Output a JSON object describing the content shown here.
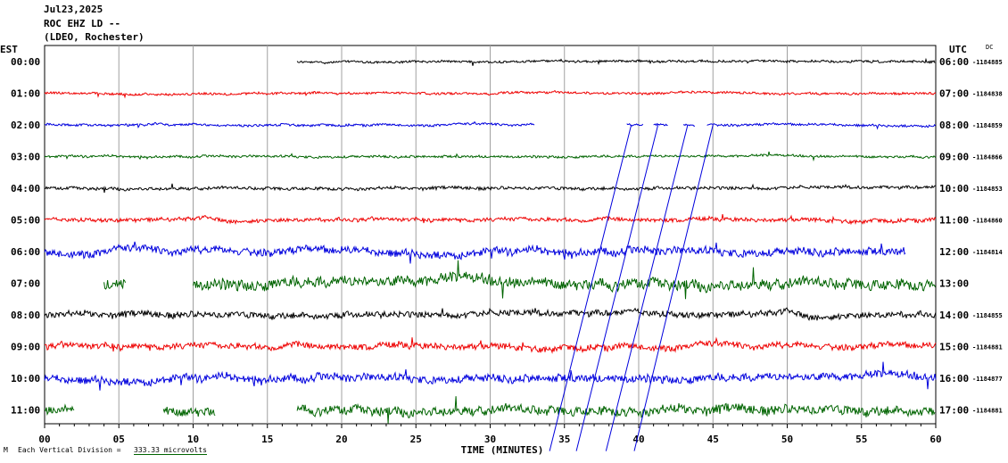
{
  "header": {
    "date": "Jul23,2025",
    "station": "ROC EHZ LD --",
    "network": "(LDEO, Rochester)"
  },
  "left_axis_label": "EST",
  "right_axis_label": "UTC",
  "dc_label": "DC",
  "footer": {
    "marker": "M",
    "scale_label": "Each Vertical Division =",
    "scale_value": "333.33 microvolts"
  },
  "colors": {
    "black": "#000000",
    "red": "#ee0000",
    "blue": "#0000dd",
    "green": "#006400",
    "grid": "#a0a0a0"
  },
  "chart_data": {
    "type": "line",
    "title": "Jul23,2025 ROC EHZ LD -- (LDEO, Rochester)",
    "xlabel": "TIME (MINUTES)",
    "ylabel_left": "EST",
    "ylabel_right": "UTC",
    "xlim": [
      0,
      60
    ],
    "x_ticks": [
      "00",
      "05",
      "10",
      "15",
      "20",
      "25",
      "30",
      "35",
      "40",
      "45",
      "50",
      "55",
      "60"
    ],
    "grid": "vertical lines every 5 minutes",
    "rows": [
      {
        "est": "00:00",
        "utc": "06:00",
        "dc": "-1184885",
        "color": "black",
        "segments": [
          [
            17,
            60
          ]
        ],
        "noise": 1.5
      },
      {
        "est": "01:00",
        "utc": "07:00",
        "dc": "-1184838",
        "color": "red",
        "segments": [
          [
            0,
            60
          ]
        ],
        "noise": 1.5
      },
      {
        "est": "02:00",
        "utc": "08:00",
        "dc": "-1184859",
        "color": "blue",
        "segments": [
          [
            0,
            33
          ],
          [
            39.2,
            40.3
          ],
          [
            41.0,
            42.0
          ],
          [
            43.0,
            43.8
          ],
          [
            44.6,
            60
          ]
        ],
        "noise": 1.5
      },
      {
        "est": "03:00",
        "utc": "09:00",
        "dc": "-1184866",
        "color": "green",
        "segments": [
          [
            0,
            60
          ]
        ],
        "noise": 1.5
      },
      {
        "est": "04:00",
        "utc": "10:00",
        "dc": "-1184853",
        "color": "black",
        "segments": [
          [
            0,
            60
          ]
        ],
        "noise": 2
      },
      {
        "est": "05:00",
        "utc": "11:00",
        "dc": "-1184860",
        "color": "red",
        "segments": [
          [
            0,
            60
          ]
        ],
        "noise": 2.5
      },
      {
        "est": "06:00",
        "utc": "12:00",
        "dc": "-1184814",
        "color": "blue",
        "segments": [
          [
            0,
            58
          ]
        ],
        "noise": 5
      },
      {
        "est": "07:00",
        "utc": "13:00",
        "dc": "",
        "color": "green",
        "segments": [
          [
            4,
            5.5
          ],
          [
            10,
            60
          ]
        ],
        "noise": 7
      },
      {
        "est": "08:00",
        "utc": "14:00",
        "dc": "-1184855",
        "color": "black",
        "segments": [
          [
            0,
            60
          ]
        ],
        "noise": 4
      },
      {
        "est": "09:00",
        "utc": "15:00",
        "dc": "-1184881",
        "color": "red",
        "segments": [
          [
            0,
            60
          ]
        ],
        "noise": 4
      },
      {
        "est": "10:00",
        "utc": "16:00",
        "dc": "-1184877",
        "color": "blue",
        "segments": [
          [
            0,
            60
          ]
        ],
        "noise": 5
      },
      {
        "est": "11:00",
        "utc": "17:00",
        "dc": "-1184881",
        "color": "green",
        "segments": [
          [
            0,
            2
          ],
          [
            8,
            11.5
          ],
          [
            17,
            60
          ]
        ],
        "noise": 6
      }
    ],
    "annotations": [
      {
        "type": "event-line",
        "x_start": 39.5,
        "row_start": 2,
        "x_end": 34,
        "row_end": 12.3
      },
      {
        "type": "event-line",
        "x_start": 41.3,
        "row_start": 2,
        "x_end": 35.8,
        "row_end": 12.3
      },
      {
        "type": "event-line",
        "x_start": 43.3,
        "row_start": 2,
        "x_end": 37.8,
        "row_end": 12.3
      },
      {
        "type": "event-line",
        "x_start": 45.0,
        "row_start": 2,
        "x_end": 39.7,
        "row_end": 12.3
      }
    ]
  }
}
